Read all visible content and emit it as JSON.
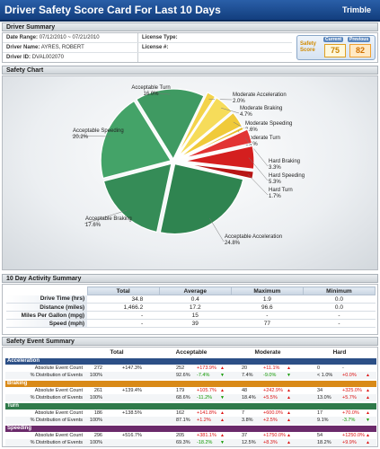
{
  "header": {
    "title": "Driver Safety Score Card For Last 10 Days",
    "brand": "Trimble"
  },
  "driver_summary": {
    "section_title": "Driver Summary",
    "date_range_label": "Date Range:",
    "date_range_value": "07/12/2010  ~  07/21/2010",
    "driver_name_label": "Driver Name:",
    "driver_name_value": "AYRES, ROBERT",
    "driver_id_label": "Driver ID:",
    "driver_id_value": "DVAL002070",
    "license_type_label": "License Type:",
    "license_type_value": "",
    "license_no_label": "License #:",
    "license_no_value": "",
    "safety_score_label": "Safety Score",
    "current_label": "Current",
    "current_value": "75",
    "previous_label": "Previous",
    "previous_value": "82"
  },
  "safety_chart": {
    "section_title": "Safety Chart"
  },
  "chart_data": {
    "type": "pie",
    "slices": [
      {
        "name": "Acceptable Turn",
        "value": 16.0,
        "label": "16.0%",
        "color": "#3f9a62"
      },
      {
        "name": "Moderate Acceleration",
        "value": 2.0,
        "label": "2.0%",
        "color": "#f3d34a"
      },
      {
        "name": "Moderate Braking",
        "value": 4.7,
        "label": "4.7%",
        "color": "#f6dc5a"
      },
      {
        "name": "Moderate Speeding",
        "value": 3.6,
        "label": "3.6%",
        "color": "#f0ca3a"
      },
      {
        "name": "Moderate Turn",
        "value": 0.7,
        "label": "0.7%",
        "color": "#e8bd2a"
      },
      {
        "name": "Hard Braking",
        "value": 3.3,
        "label": "3.3%",
        "color": "#e23434"
      },
      {
        "name": "Hard Speeding",
        "value": 5.3,
        "label": "5.3%",
        "color": "#d41f1f"
      },
      {
        "name": "Hard Turn",
        "value": 1.7,
        "label": "1.7%",
        "color": "#b81515"
      },
      {
        "name": "Acceptable Acceleration",
        "value": 24.8,
        "label": "24.8%",
        "color": "#2f8450"
      },
      {
        "name": "Acceptable Braking",
        "value": 17.6,
        "label": "17.6%",
        "color": "#358c57"
      },
      {
        "name": "Acceptable Speeding",
        "value": 20.2,
        "label": "20.2%",
        "color": "#44a368"
      }
    ]
  },
  "activity": {
    "section_title": "10 Day Activity Summary",
    "columns": [
      "",
      "Total",
      "Average",
      "Maximum",
      "Minimum"
    ],
    "rows": [
      [
        "Drive Time (hrs)",
        "34.8",
        "0.4",
        "1.9",
        "0.0"
      ],
      [
        "Distance (miles)",
        "1,466.2",
        "17.2",
        "96.6",
        "0.0"
      ],
      [
        "Miles Per Gallon (mpg)",
        "-",
        "15",
        "-",
        "-"
      ],
      [
        "Speed (mph)",
        "-",
        "39",
        "77",
        "-"
      ]
    ]
  },
  "events": {
    "section_title": "Safety Event Summary",
    "headers": [
      "Total",
      "Acceptable",
      "Moderate",
      "Hard"
    ],
    "categories": [
      {
        "name": "Acceleration",
        "color": "#2c4f86",
        "count": [
          "Absolute Event Count",
          "272",
          "+147.3%",
          "252",
          "+173.9%",
          "20",
          "+11.1%",
          "0",
          "-"
        ],
        "dist": [
          "% Distribution of Events",
          "100%",
          "",
          "92.6%",
          "-7.4%",
          "7.4%",
          "-9.0%",
          "< 1.0%",
          "+0.0%"
        ]
      },
      {
        "name": "Braking",
        "color": "#d98a18",
        "count": [
          "Absolute Event Count",
          "261",
          "+139.4%",
          "179",
          "+105.7%",
          "48",
          "+242.9%",
          "34",
          "+325.0%"
        ],
        "dist": [
          "% Distribution of Events",
          "100%",
          "",
          "68.6%",
          "-11.2%",
          "18.4%",
          "+5.5%",
          "13.0%",
          "+5.7%"
        ]
      },
      {
        "name": "Turn",
        "color": "#2f7a4a",
        "count": [
          "Absolute Event Count",
          "186",
          "+138.5%",
          "162",
          "+141.8%",
          "7",
          "+600.0%",
          "17",
          "+70.0%"
        ],
        "dist": [
          "% Distribution of Events",
          "100%",
          "",
          "87.1%",
          "+1.2%",
          "3.8%",
          "+2.5%",
          "9.1%",
          "-3.7%"
        ]
      },
      {
        "name": "Speeding",
        "color": "#6b2a6b",
        "count": [
          "Absolute Event Count",
          "296",
          "+516.7%",
          "205",
          "+381.1%",
          "37",
          "+1750.0%",
          "54",
          "+1250.0%"
        ],
        "dist": [
          "% Distribution of Events",
          "100%",
          "",
          "69.3%",
          "-18.2%",
          "12.5%",
          "+8.3%",
          "18.2%",
          "+9.9%"
        ]
      }
    ]
  }
}
